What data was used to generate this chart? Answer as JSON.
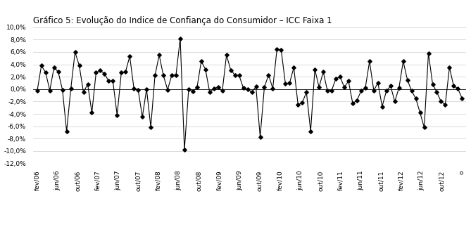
{
  "title": "Gráfico 5: Evolução do Indice de Confiança do Consumidor – ICC Faixa 1",
  "ylim": [
    -12.0,
    10.0
  ],
  "yticks": [
    -12.0,
    -10.0,
    -8.0,
    -6.0,
    -4.0,
    -2.0,
    0.0,
    2.0,
    4.0,
    6.0,
    8.0,
    10.0
  ],
  "line_color": "#000000",
  "bg_color": "#ffffff",
  "values": [
    -0.3,
    3.8,
    2.7,
    -0.2,
    3.5,
    2.8,
    -0.1,
    -6.8,
    0.1,
    6.0,
    3.8,
    -0.5,
    0.8,
    -3.8,
    2.7,
    3.0,
    2.5,
    1.3,
    1.3,
    -4.2,
    2.7,
    2.8,
    5.3,
    0.1,
    -0.1,
    -4.5,
    0.0,
    -6.1,
    2.2,
    5.5,
    2.2,
    -0.1,
    2.3,
    2.3,
    8.2,
    -9.8,
    0.0,
    -0.4,
    0.3,
    4.5,
    3.2,
    -0.5,
    0.1,
    0.3,
    -0.3,
    5.5,
    3.1,
    2.3,
    2.2,
    0.2,
    0.0,
    -0.5,
    0.4,
    -7.7,
    0.3,
    2.3,
    0.1,
    6.5,
    6.3,
    0.9,
    1.0,
    3.5,
    -2.5,
    -2.2,
    -0.5,
    -6.8,
    3.2,
    0.3,
    2.8,
    -0.3,
    -0.2,
    1.7,
    2.0,
    0.3,
    1.3,
    -2.3,
    -1.8,
    -0.3,
    0.2,
    4.5,
    -0.2,
    1.0,
    -2.8,
    -0.3,
    0.5,
    -2.0,
    0.2,
    4.5,
    1.5,
    -0.3,
    -1.5,
    -3.8,
    -6.2,
    5.8,
    0.8,
    -0.5,
    -2.0,
    -2.5,
    3.5,
    0.5,
    0.1,
    -1.5
  ],
  "xtick_labels": [
    "fev/06",
    "jun/06",
    "out/06",
    "fev/07",
    "jun/07",
    "out/07",
    "fev/08",
    "jun/08",
    "out/08",
    "fev/09",
    "jun/09",
    "out/09",
    "fev/10",
    "jun/10",
    "out/10",
    "fev/11",
    "jun/11",
    "out/11",
    "fev/12",
    "jun/12",
    "out/12",
    "o"
  ],
  "title_fontsize": 8.5,
  "tick_fontsize": 6.5,
  "marker": "D",
  "markersize": 2.8,
  "linewidth": 0.8
}
